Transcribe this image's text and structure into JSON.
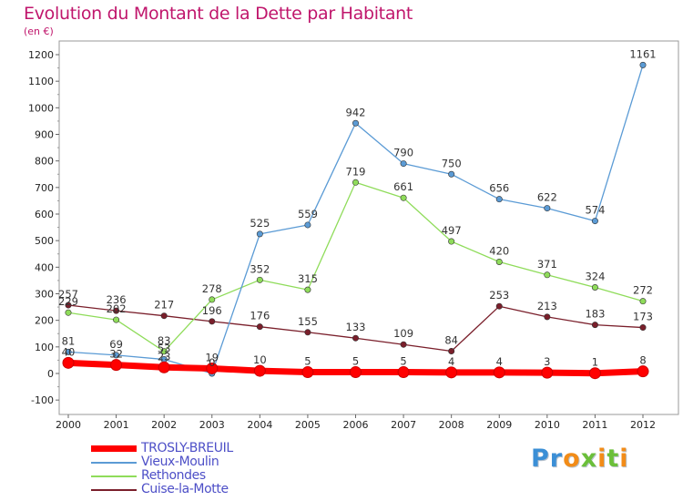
{
  "chart_data": {
    "type": "line",
    "title": "Evolution du Montant de la Dette par Habitant",
    "unit": "(en €)",
    "categories": [
      "2000",
      "2001",
      "2002",
      "2003",
      "2004",
      "2005",
      "2006",
      "2007",
      "2008",
      "2009",
      "2010",
      "2011",
      "2012"
    ],
    "y_ticks": [
      "-100",
      "0",
      "100",
      "200",
      "300",
      "400",
      "500",
      "600",
      "700",
      "800",
      "900",
      "1000",
      "1100",
      "1200"
    ],
    "ylim": [
      -100,
      1200
    ],
    "grid": false,
    "legend_position": "bottom-left",
    "series": [
      {
        "name": "TROSLY-BREUIL",
        "color": "#ff0000",
        "values": [
          40,
          32,
          23,
          19,
          10,
          5,
          5,
          5,
          4,
          4,
          3,
          1,
          8
        ],
        "labels": [
          "40",
          "32",
          "23",
          "19",
          "10",
          "5",
          "5",
          "5",
          "4",
          "4",
          "3",
          "1",
          "8"
        ]
      },
      {
        "name": "Vieux-Moulin",
        "color": "#5b9bd5",
        "values": [
          81,
          69,
          53,
          0,
          525,
          559,
          942,
          790,
          750,
          656,
          622,
          574,
          1161
        ],
        "labels": [
          "81",
          "69",
          "53",
          "0",
          "525",
          "559",
          "942",
          "790",
          "750",
          "656",
          "622",
          "574",
          "1161"
        ]
      },
      {
        "name": "Rethondes",
        "color": "#8fdc5a",
        "values": [
          229,
          202,
          83,
          278,
          352,
          315,
          719,
          661,
          497,
          420,
          371,
          324,
          272
        ],
        "labels": [
          "229",
          "202",
          "83",
          "278",
          "352",
          "315",
          "719",
          "661",
          "497",
          "420",
          "371",
          "324",
          "272"
        ]
      },
      {
        "name": "Cuise-la-Motte",
        "color": "#7a1f2b",
        "values": [
          257,
          236,
          217,
          196,
          176,
          155,
          133,
          109,
          84,
          253,
          213,
          183,
          173
        ],
        "labels": [
          "257",
          "236",
          "217",
          "196",
          "176",
          "155",
          "133",
          "109",
          "84",
          "253",
          "213",
          "183",
          "173"
        ]
      }
    ]
  },
  "logo": {
    "letters": [
      "P",
      "r",
      "o",
      "x",
      "i",
      "t",
      "i"
    ],
    "colors": [
      "#3b8fd6",
      "#3b8fd6",
      "#f28c18",
      "#6bbf3a",
      "#f28c18",
      "#6bbf3a",
      "#f28c18"
    ]
  }
}
